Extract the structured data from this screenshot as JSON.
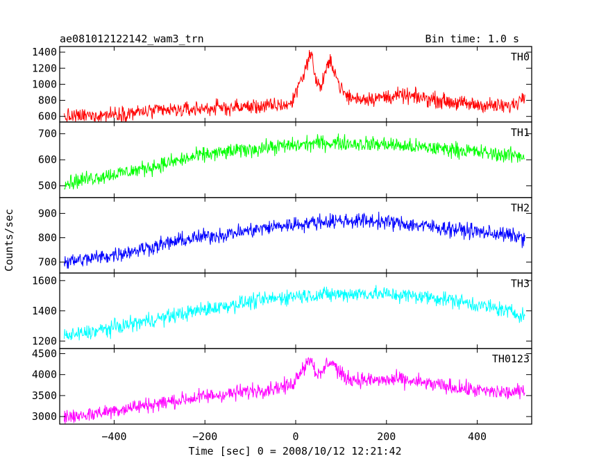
{
  "chart_data": {
    "type": "line",
    "title": "ae081012122142_wam3_trn",
    "subtitle": "Bin time: 1.0 s",
    "xlabel": "Time [sec] 0 = 2008/10/12 12:21:42",
    "ylabel": "Counts/sec",
    "xlim": [
      -520,
      520
    ],
    "xticks": [
      -400,
      -200,
      0,
      200,
      400
    ],
    "x_tick_labels": [
      "−400",
      "−200",
      "0",
      "200",
      "400"
    ],
    "grid": false,
    "series": [
      {
        "name": "TH0",
        "color": "#ff0000",
        "ylim": [
          530,
          1470
        ],
        "yticks": [
          600,
          800,
          1000,
          1200,
          1400
        ],
        "x": [
          -510,
          -450,
          -400,
          -350,
          -300,
          -250,
          -200,
          -150,
          -100,
          -50,
          -10,
          0,
          10,
          20,
          30,
          35,
          45,
          55,
          65,
          75,
          85,
          95,
          110,
          130,
          180,
          230,
          280,
          330,
          380,
          420,
          470,
          490,
          505
        ],
        "values": [
          590,
          610,
          630,
          650,
          670,
          680,
          700,
          710,
          720,
          730,
          750,
          900,
          1050,
          1150,
          1370,
          1350,
          1050,
          950,
          1150,
          1270,
          1200,
          1000,
          860,
          820,
          830,
          860,
          830,
          790,
          750,
          740,
          720,
          780,
          900
        ]
      },
      {
        "name": "TH1",
        "color": "#00ff00",
        "ylim": [
          455,
          745
        ],
        "yticks": [
          500,
          600,
          700
        ],
        "x": [
          -510,
          -450,
          -400,
          -350,
          -300,
          -250,
          -200,
          -150,
          -100,
          -50,
          0,
          50,
          100,
          150,
          200,
          250,
          300,
          350,
          400,
          450,
          505
        ],
        "values": [
          510,
          530,
          545,
          560,
          580,
          600,
          620,
          630,
          640,
          650,
          655,
          665,
          665,
          660,
          660,
          650,
          645,
          640,
          630,
          620,
          615
        ]
      },
      {
        "name": "TH2",
        "color": "#0000ff",
        "ylim": [
          655,
          965
        ],
        "yticks": [
          700,
          800,
          900
        ],
        "x": [
          -510,
          -450,
          -400,
          -350,
          -300,
          -250,
          -200,
          -150,
          -100,
          -50,
          0,
          50,
          100,
          150,
          200,
          250,
          300,
          350,
          400,
          450,
          505
        ],
        "values": [
          700,
          715,
          730,
          750,
          770,
          790,
          805,
          815,
          830,
          845,
          855,
          865,
          870,
          870,
          865,
          855,
          845,
          835,
          825,
          815,
          800
        ]
      },
      {
        "name": "TH3",
        "color": "#00ffff",
        "ylim": [
          1150,
          1650
        ],
        "yticks": [
          1200,
          1400,
          1600
        ],
        "x": [
          -510,
          -450,
          -400,
          -350,
          -300,
          -250,
          -200,
          -150,
          -100,
          -50,
          0,
          50,
          100,
          150,
          200,
          250,
          300,
          350,
          400,
          450,
          505
        ],
        "values": [
          1230,
          1260,
          1290,
          1320,
          1350,
          1380,
          1410,
          1435,
          1460,
          1480,
          1500,
          1505,
          1510,
          1515,
          1510,
          1500,
          1490,
          1470,
          1440,
          1410,
          1370
        ]
      },
      {
        "name": "TH0123",
        "color": "#ff00ff",
        "ylim": [
          2820,
          4620
        ],
        "yticks": [
          3000,
          3500,
          4000,
          4500
        ],
        "x": [
          -510,
          -450,
          -400,
          -350,
          -300,
          -250,
          -200,
          -150,
          -100,
          -50,
          -10,
          0,
          10,
          20,
          30,
          35,
          45,
          55,
          65,
          75,
          85,
          95,
          110,
          130,
          180,
          230,
          280,
          330,
          380,
          420,
          470,
          505
        ],
        "values": [
          2980,
          3060,
          3150,
          3240,
          3320,
          3400,
          3480,
          3540,
          3610,
          3680,
          3740,
          3900,
          4100,
          4200,
          4380,
          4350,
          4050,
          3950,
          4200,
          4320,
          4250,
          4050,
          3920,
          3880,
          3860,
          3880,
          3800,
          3720,
          3650,
          3600,
          3570,
          3600
        ]
      }
    ]
  }
}
